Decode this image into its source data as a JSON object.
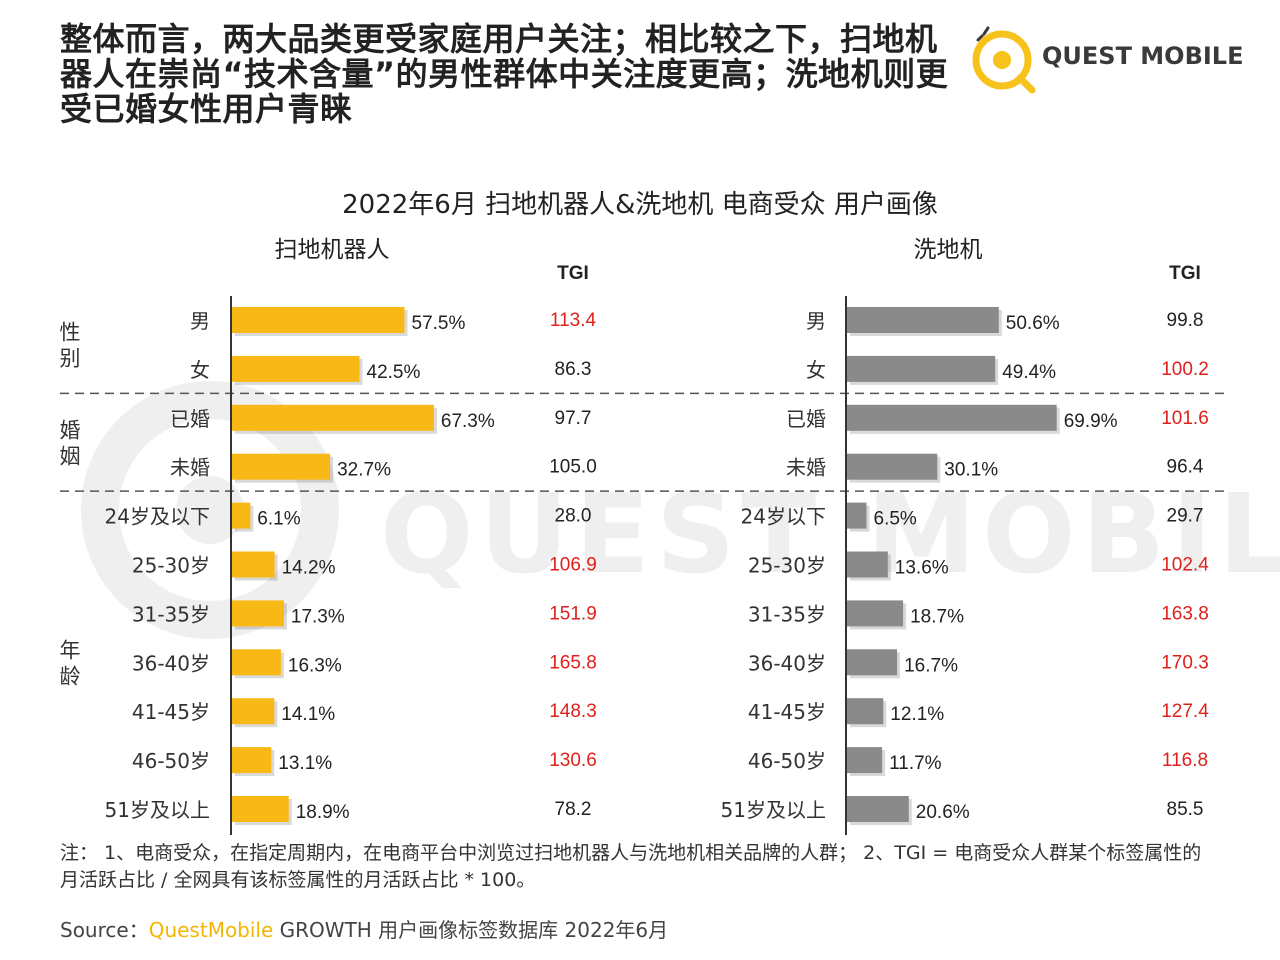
{
  "headline": "整体而言，两大品类更受家庭用户关注；相比较之下，扫地机器人在崇尚“技术含量”的男性群体中关注度更高；洗地机则更受已婚女性用户青睐",
  "logo": {
    "text": "QUEST MOBILE",
    "watermark": "QUEST MOBILE"
  },
  "colors": {
    "robot_bar": "#F8B916",
    "washer_bar": "#8A8A8A",
    "highlight": "#E0201B",
    "normal": "#222222"
  },
  "chart_data": {
    "type": "bar",
    "orientation": "horizontal",
    "title": "2022年6月 扫地机器人&洗地机 电商受众 用户画像",
    "tgi_header": "TGI",
    "groups": [
      {
        "name": "性别",
        "size": 2
      },
      {
        "name": "婚姻",
        "size": 2
      },
      {
        "name": "年龄",
        "size": 7
      }
    ],
    "panels": [
      {
        "name": "扫地机器人",
        "categories": [
          "男",
          "女",
          "已婚",
          "未婚",
          "24岁及以下",
          "25-30岁",
          "31-35岁",
          "36-40岁",
          "41-45岁",
          "46-50岁",
          "51岁及以上"
        ],
        "values": [
          57.5,
          42.5,
          67.3,
          32.7,
          6.1,
          14.2,
          17.3,
          16.3,
          14.1,
          13.1,
          18.9
        ],
        "labels": [
          "57.5%",
          "42.5%",
          "67.3%",
          "32.7%",
          "6.1%",
          "14.2%",
          "17.3%",
          "16.3%",
          "14.1%",
          "13.1%",
          "18.9%"
        ],
        "tgi": [
          "113.4",
          "86.3",
          "97.7",
          "105.0",
          "28.0",
          "106.9",
          "151.9",
          "165.8",
          "148.3",
          "130.6",
          "78.2"
        ],
        "tgi_highlight": [
          true,
          false,
          false,
          false,
          false,
          true,
          true,
          true,
          true,
          true,
          false
        ]
      },
      {
        "name": "洗地机",
        "categories": [
          "男",
          "女",
          "已婚",
          "未婚",
          "24岁以下",
          "25-30岁",
          "31-35岁",
          "36-40岁",
          "41-45岁",
          "46-50岁",
          "51岁及以上"
        ],
        "values": [
          50.6,
          49.4,
          69.9,
          30.1,
          6.5,
          13.6,
          18.7,
          16.7,
          12.1,
          11.7,
          20.6
        ],
        "labels": [
          "50.6%",
          "49.4%",
          "69.9%",
          "30.1%",
          "6.5%",
          "13.6%",
          "18.7%",
          "16.7%",
          "12.1%",
          "11.7%",
          "20.6%"
        ],
        "tgi": [
          "99.8",
          "100.2",
          "101.6",
          "96.4",
          "29.7",
          "102.4",
          "163.8",
          "170.3",
          "127.4",
          "116.8",
          "85.5"
        ],
        "tgi_highlight": [
          false,
          true,
          true,
          false,
          false,
          true,
          true,
          true,
          true,
          true,
          false
        ]
      }
    ]
  },
  "footnote": "注： 1、电商受众，在指定周期内，在电商平台中浏览过扫地机器人与洗地机相关品牌的人群； 2、TGI = 电商受众人群某个标签属性的月活跃占比 / 全网具有该标签属性的月活跃占比 * 100。",
  "source": {
    "prefix": "Source：",
    "brand": "QuestMobile",
    "rest": " GROWTH 用户画像标签数据库 2022年6月"
  }
}
